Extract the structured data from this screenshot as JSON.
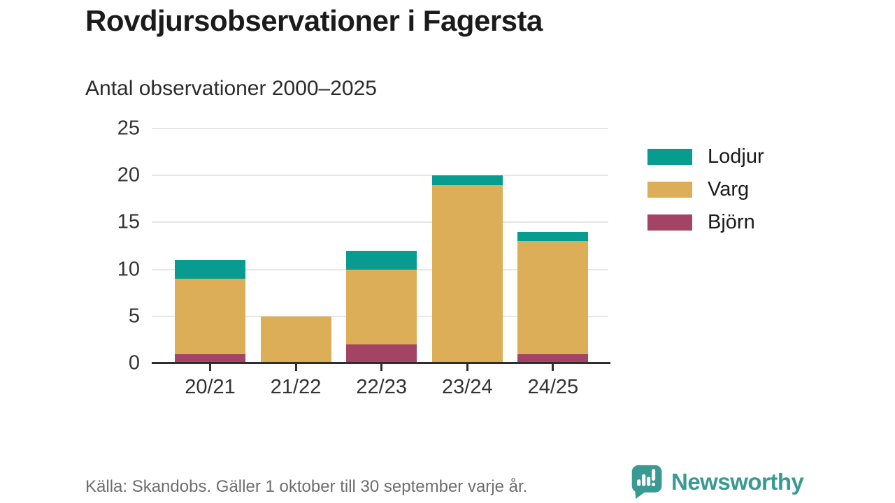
{
  "title": "Rovdjursobservationer i Fagersta",
  "subtitle": "Antal observationer 2000–2025",
  "footer": {
    "source": "Källa: Skandobs. Gäller 1 oktober till 30 september varje år.",
    "brand": "Newsworthy",
    "brand_color": "#399a93",
    "logo_icon": "speech-bubble-bar-chart-icon"
  },
  "chart_data": {
    "type": "bar",
    "stacked": true,
    "title": "Rovdjursobservationer i Fagersta",
    "subtitle": "Antal observationer 2000–2025",
    "categories": [
      "20/21",
      "21/22",
      "22/23",
      "23/24",
      "24/25"
    ],
    "series": [
      {
        "name": "Björn",
        "color": "#a34465",
        "values": [
          1,
          0,
          2,
          0,
          1
        ]
      },
      {
        "name": "Varg",
        "color": "#dcae57",
        "values": [
          8,
          5,
          8,
          19,
          12
        ]
      },
      {
        "name": "Lodjur",
        "color": "#089c91",
        "values": [
          2,
          0,
          2,
          1,
          1
        ]
      }
    ],
    "stack_order_bottom_to_top": [
      "Björn",
      "Varg",
      "Lodjur"
    ],
    "totals": [
      11,
      5,
      12,
      20,
      14
    ],
    "ylim": [
      0,
      25
    ],
    "yticks": [
      0,
      5,
      10,
      15,
      20,
      25
    ],
    "grid": "horizontal",
    "axis_color": "#2e2e2e",
    "grid_color": "#e6e6e6",
    "tick_text_color": "#333333",
    "legend": {
      "position": "right",
      "order": [
        "Lodjur",
        "Varg",
        "Björn"
      ]
    }
  }
}
